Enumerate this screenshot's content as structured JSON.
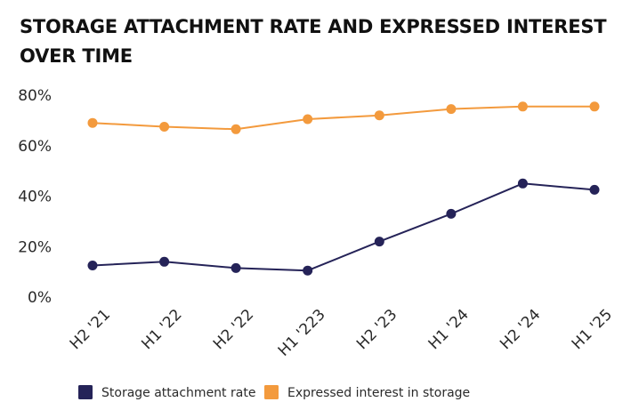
{
  "chart_data": {
    "type": "line",
    "title": "STORAGE ATTACHMENT RATE AND EXPRESSED INTEREST OVER TIME",
    "xlabel": "",
    "ylabel": "",
    "ylim": [
      0,
      80
    ],
    "yticks": [
      0,
      20,
      40,
      60,
      80
    ],
    "ytick_labels": [
      "0%",
      "20%",
      "40%",
      "60%",
      "80%"
    ],
    "grid": false,
    "legend_position": "bottom",
    "categories": [
      "H2 '21",
      "H1 '22",
      "H2 '22",
      "H1 '223",
      "H2 '23",
      "H1 '24",
      "H2 '24",
      "H1 '25"
    ],
    "series": [
      {
        "name": "Storage attachment rate",
        "color": "#252358",
        "values": [
          12.5,
          14,
          11.5,
          10.5,
          22,
          33,
          45,
          42.5
        ]
      },
      {
        "name": "Expressed interest in storage",
        "color": "#F39A3D",
        "values": [
          69,
          67.5,
          66.5,
          70.5,
          72,
          74.5,
          75.5,
          75.5
        ]
      }
    ]
  }
}
